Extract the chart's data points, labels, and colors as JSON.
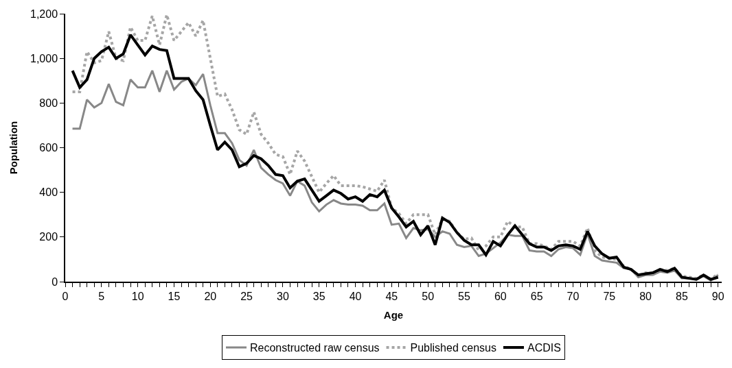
{
  "chart_data": {
    "type": "line",
    "xlabel": "Age",
    "ylabel": "Population",
    "x": [
      1,
      2,
      3,
      4,
      5,
      6,
      7,
      8,
      9,
      10,
      11,
      12,
      13,
      14,
      15,
      16,
      17,
      18,
      19,
      20,
      21,
      22,
      23,
      24,
      25,
      26,
      27,
      28,
      29,
      30,
      31,
      32,
      33,
      34,
      35,
      36,
      37,
      38,
      39,
      40,
      41,
      42,
      43,
      44,
      45,
      46,
      47,
      48,
      49,
      50,
      51,
      52,
      53,
      54,
      55,
      56,
      57,
      58,
      59,
      60,
      61,
      62,
      63,
      64,
      65,
      66,
      67,
      68,
      69,
      70,
      71,
      72,
      73,
      74,
      75,
      76,
      77,
      78,
      79,
      80,
      81,
      82,
      83,
      84,
      85,
      86,
      87,
      88,
      89,
      90
    ],
    "series": [
      {
        "name": "Reconstructed raw census",
        "color": "#888888",
        "values": [
          685,
          685,
          815,
          780,
          800,
          885,
          805,
          790,
          905,
          870,
          870,
          945,
          850,
          945,
          860,
          895,
          910,
          880,
          930,
          790,
          665,
          665,
          620,
          545,
          520,
          590,
          510,
          480,
          455,
          440,
          385,
          450,
          430,
          355,
          315,
          345,
          365,
          350,
          345,
          345,
          340,
          320,
          320,
          350,
          255,
          260,
          195,
          240,
          230,
          235,
          200,
          225,
          215,
          165,
          155,
          160,
          115,
          125,
          150,
          175,
          210,
          205,
          205,
          140,
          135,
          135,
          115,
          145,
          155,
          150,
          120,
          215,
          115,
          95,
          90,
          85,
          60,
          55,
          20,
          30,
          30,
          45,
          40,
          50,
          15,
          15,
          10,
          25,
          5,
          30
        ]
      },
      {
        "name": "Published census",
        "color": "#a6a6a6",
        "line_style": "dotted",
        "values": [
          850,
          850,
          1030,
          980,
          990,
          1120,
          1000,
          990,
          1140,
          1080,
          1080,
          1190,
          1060,
          1195,
          1080,
          1120,
          1160,
          1100,
          1170,
          1000,
          830,
          840,
          770,
          680,
          660,
          760,
          660,
          620,
          570,
          560,
          480,
          585,
          540,
          470,
          400,
          440,
          475,
          430,
          430,
          430,
          425,
          415,
          405,
          455,
          330,
          305,
          260,
          300,
          300,
          300,
          210,
          280,
          270,
          220,
          190,
          195,
          140,
          160,
          200,
          200,
          270,
          245,
          245,
          170,
          170,
          160,
          145,
          180,
          180,
          180,
          160,
          240,
          140,
          110,
          105,
          100,
          70,
          55,
          25,
          40,
          35,
          55,
          50,
          60,
          25,
          20,
          15,
          30,
          10,
          35
        ]
      },
      {
        "name": "ACDIS",
        "color": "#000000",
        "values": [
          945,
          870,
          905,
          1000,
          1030,
          1050,
          1000,
          1020,
          1105,
          1060,
          1015,
          1055,
          1040,
          1035,
          910,
          910,
          910,
          855,
          815,
          700,
          590,
          625,
          590,
          515,
          530,
          565,
          550,
          520,
          480,
          475,
          420,
          450,
          460,
          410,
          360,
          385,
          410,
          395,
          370,
          380,
          360,
          390,
          380,
          410,
          330,
          290,
          245,
          270,
          210,
          250,
          165,
          285,
          265,
          220,
          185,
          165,
          165,
          120,
          180,
          160,
          210,
          250,
          210,
          170,
          155,
          155,
          140,
          160,
          165,
          160,
          145,
          225,
          160,
          125,
          105,
          110,
          65,
          55,
          30,
          35,
          40,
          55,
          45,
          60,
          20,
          15,
          10,
          30,
          10,
          20
        ]
      }
    ],
    "xlim": [
      0,
      90.5
    ],
    "ylim": [
      0,
      1200
    ],
    "xticks": [
      0,
      {
        "value": 1,
        "label": null
      },
      {
        "value": 2,
        "label": null
      },
      {
        "value": 3,
        "label": null
      },
      {
        "value": 4,
        "label": null
      },
      5,
      {
        "value": 6,
        "label": null
      },
      {
        "value": 7,
        "label": null
      },
      {
        "value": 8,
        "label": null
      },
      {
        "value": 9,
        "label": null
      },
      10,
      {
        "value": 11,
        "label": null
      },
      {
        "value": 12,
        "label": null
      },
      {
        "value": 13,
        "label": null
      },
      {
        "value": 14,
        "label": null
      },
      15,
      {
        "value": 16,
        "label": null
      },
      {
        "value": 17,
        "label": null
      },
      {
        "value": 18,
        "label": null
      },
      {
        "value": 19,
        "label": null
      },
      20,
      {
        "value": 21,
        "label": null
      },
      {
        "value": 22,
        "label": null
      },
      {
        "value": 23,
        "label": null
      },
      {
        "value": 24,
        "label": null
      },
      25,
      {
        "value": 26,
        "label": null
      },
      {
        "value": 27,
        "label": null
      },
      {
        "value": 28,
        "label": null
      },
      {
        "value": 29,
        "label": null
      },
      30,
      {
        "value": 31,
        "label": null
      },
      {
        "value": 32,
        "label": null
      },
      {
        "value": 33,
        "label": null
      },
      {
        "value": 34,
        "label": null
      },
      35,
      {
        "value": 36,
        "label": null
      },
      {
        "value": 37,
        "label": null
      },
      {
        "value": 38,
        "label": null
      },
      {
        "value": 39,
        "label": null
      },
      40,
      {
        "value": 41,
        "label": null
      },
      {
        "value": 42,
        "label": null
      },
      {
        "value": 43,
        "label": null
      },
      {
        "value": 44,
        "label": null
      },
      45,
      {
        "value": 46,
        "label": null
      },
      {
        "value": 47,
        "label": null
      },
      {
        "value": 48,
        "label": null
      },
      {
        "value": 49,
        "label": null
      },
      50,
      {
        "value": 51,
        "label": null
      },
      {
        "value": 52,
        "label": null
      },
      {
        "value": 53,
        "label": null
      },
      {
        "value": 54,
        "label": null
      },
      55,
      {
        "value": 56,
        "label": null
      },
      {
        "value": 57,
        "label": null
      },
      {
        "value": 58,
        "label": null
      },
      {
        "value": 59,
        "label": null
      },
      60,
      {
        "value": 61,
        "label": null
      },
      {
        "value": 62,
        "label": null
      },
      {
        "value": 63,
        "label": null
      },
      {
        "value": 64,
        "label": null
      },
      65,
      {
        "value": 66,
        "label": null
      },
      {
        "value": 67,
        "label": null
      },
      {
        "value": 68,
        "label": null
      },
      {
        "value": 69,
        "label": null
      },
      70,
      {
        "value": 71,
        "label": null
      },
      {
        "value": 72,
        "label": null
      },
      {
        "value": 73,
        "label": null
      },
      {
        "value": 74,
        "label": null
      },
      75,
      {
        "value": 76,
        "label": null
      },
      {
        "value": 77,
        "label": null
      },
      {
        "value": 78,
        "label": null
      },
      {
        "value": 79,
        "label": null
      },
      80,
      {
        "value": 81,
        "label": null
      },
      {
        "value": 82,
        "label": null
      },
      {
        "value": 83,
        "label": null
      },
      {
        "value": 84,
        "label": null
      },
      85,
      {
        "value": 86,
        "label": null
      },
      {
        "value": 87,
        "label": null
      },
      {
        "value": 88,
        "label": null
      },
      {
        "value": 89,
        "label": null
      },
      90
    ],
    "yticks": [
      0,
      200,
      400,
      600,
      800,
      {
        "value": 1000,
        "label": "1,000"
      },
      {
        "value": 1200,
        "label": "1,200"
      }
    ],
    "legend": "bottom",
    "marker": "none"
  }
}
